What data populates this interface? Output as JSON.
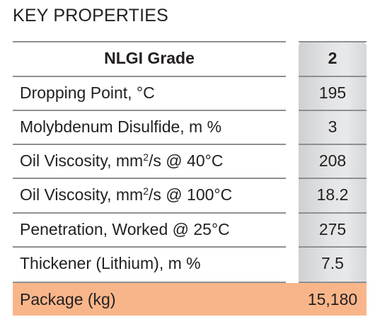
{
  "title": "KEY PROPERTIES",
  "table": {
    "header": {
      "label": "NLGI Grade",
      "value": "2"
    },
    "rows": [
      {
        "label": "Dropping Point, °C",
        "value": "195"
      },
      {
        "label": "Molybdenum Disulfide, m %",
        "value": "3"
      },
      {
        "label_pre": "Oil Viscosity, mm",
        "label_sup": "2",
        "label_post": "/s @ 40°C",
        "value": "208"
      },
      {
        "label_pre": "Oil Viscosity, mm",
        "label_sup": "2",
        "label_post": "/s @ 100°C",
        "value": "18.2"
      },
      {
        "label": "Penetration, Worked @ 25°C",
        "value": "275"
      },
      {
        "label": "Thickener (Lithium), m %",
        "value": "7.5"
      }
    ],
    "package": {
      "label": "Package (kg)",
      "value": "15,180"
    }
  },
  "colors": {
    "package_highlight": "#f9b58a",
    "column_shade": "#e3e4e5",
    "rule": "#8d8f92",
    "text": "#231f20"
  }
}
